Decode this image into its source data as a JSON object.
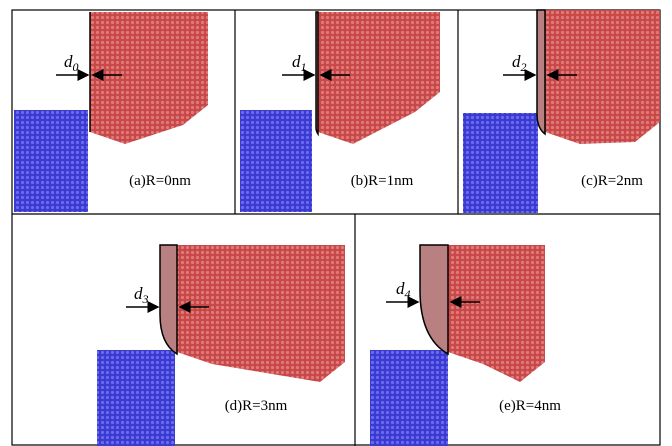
{
  "panels": [
    {
      "label": "(a)R=0nm",
      "symbol": "d",
      "subscript": "0"
    },
    {
      "label": "(b)R=1nm",
      "symbol": "d",
      "subscript": "1"
    },
    {
      "label": "(c)R=2nm",
      "symbol": "d",
      "subscript": "2"
    },
    {
      "label": "(d)R=3nm",
      "symbol": "d",
      "subscript": "3"
    },
    {
      "label": "(e)R=4nm",
      "symbol": "d",
      "subscript": "4"
    }
  ]
}
